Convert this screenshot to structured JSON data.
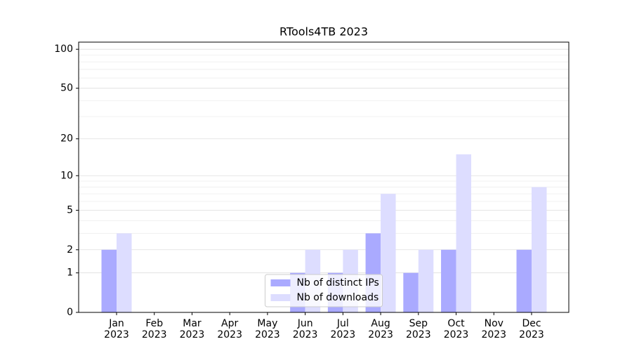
{
  "chart_data": {
    "type": "bar",
    "title": "RTools4TB 2023",
    "categories": [
      "Jan\n2023",
      "Feb\n2023",
      "Mar\n2023",
      "Apr\n2023",
      "May\n2023",
      "Jun\n2023",
      "Jul\n2023",
      "Aug\n2023",
      "Sep\n2023",
      "Oct\n2023",
      "Nov\n2023",
      "Dec\n2023"
    ],
    "series": [
      {
        "name": "Nb of distinct IPs",
        "color": "#aaaaff",
        "values": [
          2,
          0,
          0,
          0,
          0,
          1,
          1,
          3,
          1,
          2,
          0,
          2
        ]
      },
      {
        "name": "Nb of downloads",
        "color": "#ddddff",
        "values": [
          3,
          0,
          0,
          0,
          0,
          2,
          2,
          7,
          2,
          15,
          0,
          8
        ]
      }
    ],
    "yscale": "log1p",
    "ylim": [
      0,
      113.5
    ],
    "yticks": [
      0,
      1,
      2,
      5,
      10,
      20,
      50,
      100
    ],
    "minor_yticks": [
      3,
      4,
      6,
      7,
      8,
      9,
      30,
      40,
      60,
      70,
      80,
      90
    ],
    "grid": true,
    "legend": "lower center"
  }
}
